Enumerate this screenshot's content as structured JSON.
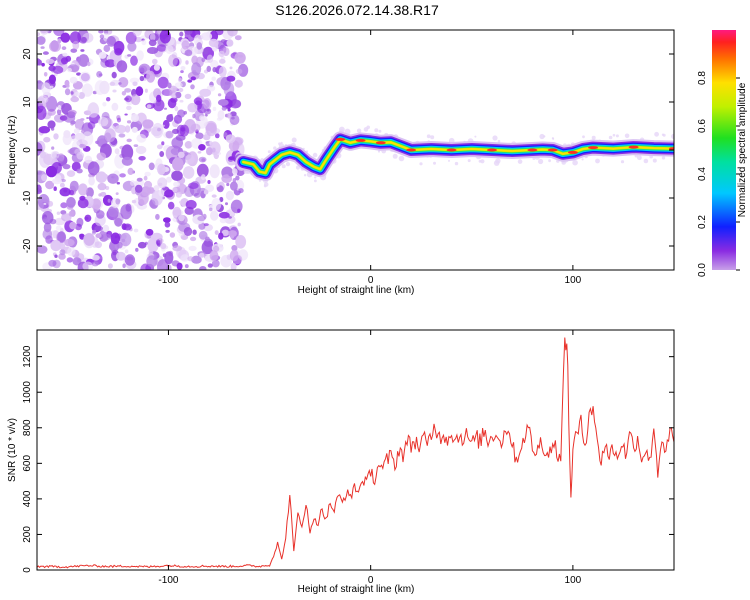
{
  "figure": {
    "title": "S126.2026.072.14.38.R17"
  },
  "chart_data": [
    {
      "type": "heatmap",
      "name": "spectrogram",
      "title": "S126.2026.072.14.38.R17",
      "xlabel": "Height of straight line (km)",
      "ylabel": "Frequency (Hz)",
      "xlim": [
        -165,
        150
      ],
      "ylim": [
        -25,
        25
      ],
      "xticks": [
        -100,
        0,
        100
      ],
      "yticks": [
        -20,
        -10,
        0,
        10,
        20
      ],
      "noise_region_x": [
        -165,
        -63
      ],
      "ridge": {
        "x": [
          -63,
          -58,
          -55,
          -52,
          -50,
          -47,
          -44,
          -40,
          -36,
          -32,
          -28,
          -25,
          -22,
          -18,
          -15,
          -10,
          -5,
          0,
          5,
          10,
          20,
          30,
          40,
          50,
          60,
          70,
          80,
          85,
          90,
          95,
          100,
          105,
          110,
          120,
          130,
          140,
          150
        ],
        "y": [
          -2.5,
          -3,
          -4.5,
          -4.8,
          -3,
          -2,
          -1,
          -0.5,
          -1,
          -2.5,
          -3.5,
          -4,
          -2,
          0.5,
          2.2,
          1.5,
          2,
          1.8,
          1.5,
          1.6,
          0,
          0.2,
          0,
          0.2,
          0,
          -0.2,
          0,
          0.1,
          0,
          -0.8,
          -0.5,
          0.2,
          0.5,
          0.3,
          0.6,
          0.4,
          0.3
        ]
      },
      "colorbar": {
        "label": "Normalized spectral amplitude",
        "range": [
          0.0,
          1.0
        ],
        "ticks": [
          0.0,
          0.2,
          0.4,
          0.6,
          0.8
        ]
      }
    },
    {
      "type": "line",
      "name": "snr",
      "xlabel": "Height of straight line (km)",
      "ylabel": "SNR (10 * v/v)",
      "xlim": [
        -165,
        150
      ],
      "ylim": [
        0,
        1350
      ],
      "xticks": [
        -100,
        0,
        100
      ],
      "yticks": [
        0,
        200,
        400,
        600,
        800,
        1000,
        1200
      ],
      "color": "#e8312a",
      "series": [
        {
          "name": "SNR",
          "x": [
            -165,
            -150,
            -140,
            -130,
            -120,
            -110,
            -100,
            -90,
            -80,
            -70,
            -60,
            -55,
            -50,
            -48,
            -46,
            -44,
            -42,
            -40,
            -38,
            -36,
            -34,
            -32,
            -30,
            -28,
            -26,
            -24,
            -22,
            -20,
            -18,
            -16,
            -14,
            -12,
            -10,
            -8,
            -6,
            -4,
            -2,
            0,
            2,
            4,
            6,
            8,
            10,
            12,
            14,
            16,
            18,
            20,
            22,
            24,
            26,
            28,
            30,
            32,
            34,
            36,
            38,
            40,
            42,
            44,
            46,
            48,
            50,
            52,
            54,
            56,
            58,
            60,
            62,
            64,
            66,
            68,
            70,
            72,
            74,
            76,
            78,
            80,
            82,
            84,
            86,
            88,
            90,
            92,
            94,
            96,
            97,
            98,
            99,
            100,
            102,
            104,
            106,
            108,
            110,
            112,
            114,
            116,
            118,
            120,
            122,
            124,
            126,
            128,
            130,
            132,
            134,
            136,
            138,
            140,
            142,
            144,
            146,
            148,
            150
          ],
          "y": [
            20,
            18,
            25,
            20,
            22,
            18,
            25,
            20,
            22,
            20,
            25,
            20,
            28,
            80,
            150,
            60,
            180,
            430,
            100,
            320,
            250,
            380,
            200,
            300,
            260,
            350,
            280,
            380,
            330,
            420,
            380,
            440,
            400,
            480,
            430,
            520,
            480,
            560,
            510,
            600,
            560,
            620,
            640,
            590,
            680,
            650,
            720,
            700,
            730,
            690,
            740,
            700,
            760,
            820,
            740,
            780,
            730,
            790,
            720,
            770,
            740,
            760,
            700,
            750,
            720,
            780,
            730,
            750,
            790,
            710,
            760,
            820,
            700,
            620,
            680,
            760,
            790,
            700,
            650,
            720,
            690,
            640,
            720,
            680,
            600,
            1300,
            1330,
            820,
            400,
            700,
            760,
            820,
            700,
            900,
            930,
            700,
            620,
            710,
            640,
            690,
            620,
            730,
            650,
            760,
            700,
            740,
            630,
            680,
            600,
            820,
            540,
            760,
            640,
            780,
            720
          ]
        }
      ]
    }
  ]
}
